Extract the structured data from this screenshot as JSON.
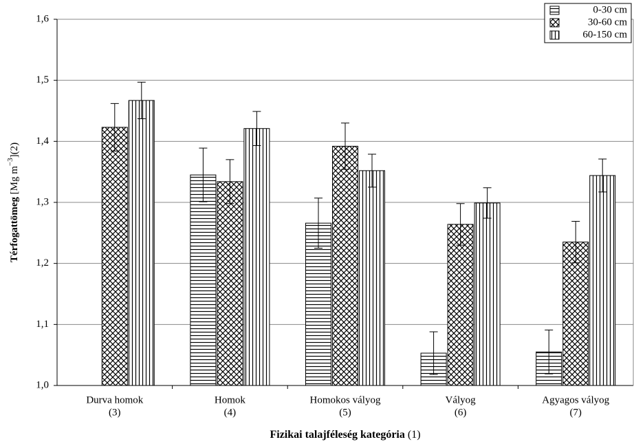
{
  "chart_data": {
    "type": "bar",
    "categories": [
      [
        "Durva homok",
        "(3)"
      ],
      [
        "Homok",
        "(4)"
      ],
      [
        "Homokos vályog",
        "(5)"
      ],
      [
        "Vályog",
        "(6)"
      ],
      [
        "Agyagos vályog",
        "(7)"
      ]
    ],
    "series": [
      {
        "name": "0-30 cm",
        "color": "#000000",
        "pattern": "horizontal",
        "values": [
          null,
          1.345,
          1.266,
          1.053,
          1.055
        ],
        "errors": [
          null,
          0.044,
          0.041,
          0.035,
          0.036
        ]
      },
      {
        "name": "30-60 cm",
        "color": "#000000",
        "pattern": "crosshatch",
        "values": [
          1.423,
          1.334,
          1.392,
          1.264,
          1.235
        ],
        "errors": [
          0.039,
          0.036,
          0.038,
          0.034,
          0.034
        ]
      },
      {
        "name": "60-150 cm",
        "color": "#000000",
        "pattern": "vertical",
        "values": [
          1.467,
          1.421,
          1.352,
          1.299,
          1.344
        ],
        "errors": [
          0.03,
          0.028,
          0.027,
          0.025,
          0.027
        ]
      }
    ],
    "ylim": [
      1.0,
      1.6
    ],
    "yticks": [
      {
        "value": 1.0,
        "label": "1,0"
      },
      {
        "value": 1.1,
        "label": "1,1"
      },
      {
        "value": 1.2,
        "label": "1,2"
      },
      {
        "value": 1.3,
        "label": "1,3"
      },
      {
        "value": 1.4,
        "label": "1,4"
      },
      {
        "value": 1.5,
        "label": "1,5"
      },
      {
        "value": 1.6,
        "label": "1,6"
      }
    ],
    "ylabel": {
      "main": "Térfogattömeg",
      "unit": " [Mg m",
      "exponent": "−3",
      "rest": "](2)"
    },
    "xlabel": {
      "main": "Fizikai talajféleség kategória",
      "rest": " (1)"
    },
    "grid": true,
    "legend": "upper right"
  }
}
